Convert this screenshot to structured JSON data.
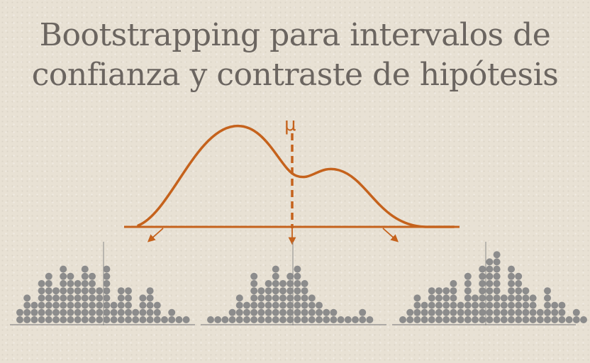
{
  "title": {
    "line1": "Bootstrapping para intervalos de",
    "line2": "confianza y contraste de hipótesis"
  },
  "diagram": {
    "mean_label": "μ",
    "curve_color": "#c5621c",
    "dot_color": "#8c8c8c",
    "axis_color": "#8a8a8a",
    "histograms": [
      {
        "name": "left",
        "columns": [
          2,
          4,
          3,
          6,
          7,
          5,
          8,
          7,
          6,
          8,
          7,
          5,
          8,
          3,
          5,
          5,
          2,
          4,
          5,
          3,
          1,
          2,
          1,
          1
        ]
      },
      {
        "name": "middle",
        "columns": [
          1,
          1,
          1,
          2,
          4,
          3,
          7,
          5,
          6,
          8,
          6,
          7,
          8,
          6,
          4,
          3,
          2,
          2,
          1,
          1,
          1,
          2,
          1
        ]
      },
      {
        "name": "right",
        "columns": [
          1,
          2,
          4,
          3,
          5,
          5,
          5,
          6,
          3,
          7,
          4,
          8,
          9,
          10,
          4,
          8,
          7,
          5,
          4,
          2,
          5,
          3,
          3,
          1,
          2,
          1
        ]
      }
    ]
  }
}
